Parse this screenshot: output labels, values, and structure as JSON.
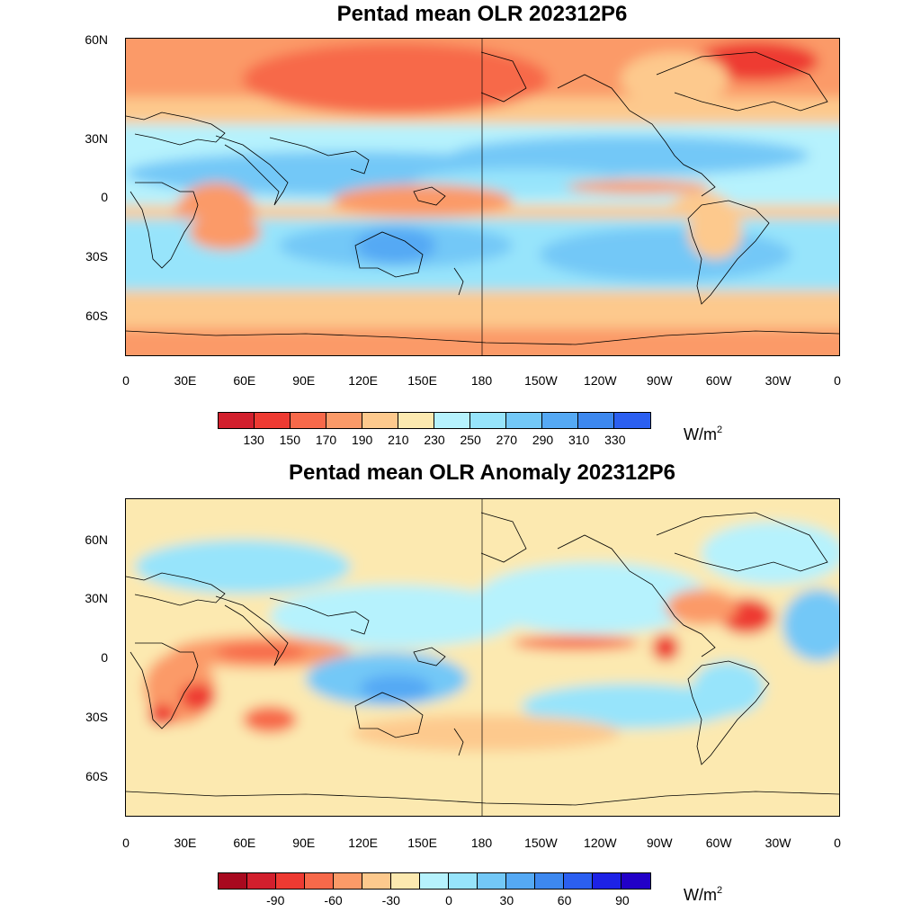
{
  "panels": [
    {
      "id": "mean",
      "title": "Pentad mean OLR 202312P6",
      "units": "W/m",
      "units_exp": "2",
      "colorbar": {
        "colors": [
          "#d21f2d",
          "#ee3a32",
          "#f7694a",
          "#fb9a68",
          "#fdc98d",
          "#fce9b0",
          "#b6f2fd",
          "#97e4fb",
          "#73c8f7",
          "#55a9f4",
          "#3d88ef",
          "#2b5ff0"
        ],
        "labels": [
          "130",
          "150",
          "170",
          "190",
          "210",
          "230",
          "250",
          "270",
          "290",
          "310",
          "330"
        ]
      }
    },
    {
      "id": "anomaly",
      "title": "Pentad mean OLR Anomaly 202312P6",
      "units": "W/m",
      "units_exp": "2",
      "colorbar": {
        "colors": [
          "#a8091f",
          "#d21f2d",
          "#ee3a32",
          "#f7694a",
          "#fb9a68",
          "#fdc98d",
          "#fce9b0",
          "#b6f2fd",
          "#97e4fb",
          "#73c8f7",
          "#55a9f4",
          "#3d88ef",
          "#2b5ff0",
          "#1d22e6",
          "#2200c8"
        ],
        "labels": [
          "",
          "-90",
          "",
          "-60",
          "",
          "-30",
          "",
          "0",
          "",
          "30",
          "",
          "60",
          "",
          "90",
          ""
        ]
      }
    }
  ],
  "x_axis": [
    "0",
    "30E",
    "60E",
    "90E",
    "120E",
    "150E",
    "180",
    "150W",
    "120W",
    "90W",
    "60W",
    "30W",
    "0"
  ],
  "y_axis": [
    "60N",
    "30N",
    "0",
    "30S",
    "60S"
  ]
}
